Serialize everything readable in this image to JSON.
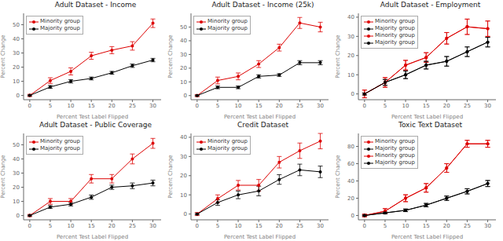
{
  "chart_data": [
    {
      "type": "line",
      "title": "Adult Dataset - Income",
      "xlabel": "Percent Test Label Flipped",
      "ylabel": "Percent Change",
      "x": [
        0,
        5,
        10,
        15,
        20,
        25,
        30
      ],
      "xlim": [
        -1.5,
        32
      ],
      "xticks": [
        0,
        5,
        10,
        15,
        20,
        25,
        30
      ],
      "ylim": [
        -3,
        58
      ],
      "yticks": [
        0,
        10,
        20,
        30,
        40,
        50
      ],
      "grid": false,
      "legend": "upper left",
      "series": [
        {
          "name": "Minority group",
          "color": "#dd0000",
          "marker": "circle",
          "values": [
            0,
            10.5,
            17,
            28,
            32,
            35,
            51
          ],
          "errors": [
            0.8,
            2,
            2.5,
            2.5,
            2.5,
            3,
            3
          ]
        },
        {
          "name": "Majority group",
          "color": "#000000",
          "marker": "circle",
          "values": [
            0,
            6,
            10,
            12,
            16,
            21,
            25
          ],
          "errors": [
            0.3,
            1,
            1.2,
            1,
            1,
            1.2,
            1.2
          ]
        }
      ]
    },
    {
      "type": "line",
      "title": "Adult Dataset - Income (25k)",
      "xlabel": "Percent Test Label Flipped",
      "ylabel": "Percent Change",
      "x": [
        0,
        5,
        10,
        15,
        20,
        25,
        30
      ],
      "xlim": [
        -1.5,
        32
      ],
      "xticks": [
        0,
        5,
        10,
        15,
        20,
        25,
        30
      ],
      "ylim": [
        -3,
        60
      ],
      "yticks": [
        0,
        10,
        20,
        30,
        40,
        50
      ],
      "grid": false,
      "legend": "upper left",
      "series": [
        {
          "name": "Minority group",
          "color": "#dd0000",
          "marker": "circle",
          "values": [
            0,
            11,
            14,
            23,
            35,
            53,
            50
          ],
          "errors": [
            0.8,
            2.5,
            2.5,
            2.5,
            2.5,
            4,
            3.5
          ]
        },
        {
          "name": "Majority group",
          "color": "#000000",
          "marker": "circle",
          "values": [
            0,
            6,
            6,
            14,
            15,
            24,
            24
          ],
          "errors": [
            0.3,
            1,
            1,
            1.2,
            1,
            1.5,
            1.5
          ]
        }
      ]
    },
    {
      "type": "line",
      "title": "Adult Dataset - Employment",
      "xlabel": "Percent Test Label Flipped",
      "ylabel": "Percent Change",
      "x": [
        0,
        5,
        10,
        15,
        20,
        25,
        30
      ],
      "xlim": [
        -1.5,
        32
      ],
      "xticks": [
        0,
        5,
        10,
        15,
        20,
        25,
        30
      ],
      "ylim": [
        -3,
        42
      ],
      "yticks": [
        0,
        10,
        20,
        30,
        40
      ],
      "grid": false,
      "legend": "upper left",
      "series": [
        {
          "name": "Minority group",
          "color": "#dd0000",
          "marker": "circle",
          "values": [
            0,
            6,
            15,
            19,
            29,
            35,
            34
          ],
          "errors": [
            2,
            2.5,
            2.5,
            2.5,
            3,
            4,
            4
          ]
        },
        {
          "name": "Majority group",
          "color": "#000000",
          "marker": "circle",
          "values": [
            0,
            6,
            10,
            15,
            17,
            22,
            27
          ],
          "errors": [
            0.5,
            1.5,
            2,
            2,
            2.5,
            2.5,
            2.5
          ]
        },
        {
          "name": "Minority group",
          "color": "#dd0000",
          "marker": "circle",
          "values": [
            0,
            6,
            15,
            19,
            29,
            35,
            34
          ],
          "errors": [
            2,
            2.5,
            2.5,
            2.5,
            3,
            4,
            4
          ]
        },
        {
          "name": "Majority group",
          "color": "#000000",
          "marker": "circle",
          "values": [
            0,
            6,
            10,
            15,
            17,
            22,
            27
          ],
          "errors": [
            0.5,
            1.5,
            2,
            2,
            2.5,
            2.5,
            2.5
          ]
        }
      ]
    },
    {
      "type": "line",
      "title": "Adult Dataset - Public Coverage",
      "xlabel": "Percent Test Label Flipped",
      "ylabel": "Percent Change",
      "x": [
        0,
        5,
        10,
        15,
        20,
        25,
        30
      ],
      "xlim": [
        -1.5,
        32
      ],
      "xticks": [
        0,
        5,
        10,
        15,
        20,
        25,
        30
      ],
      "ylim": [
        -3,
        58
      ],
      "yticks": [
        0,
        10,
        20,
        30,
        40,
        50
      ],
      "grid": false,
      "legend": "upper left",
      "series": [
        {
          "name": "Minority group",
          "color": "#dd0000",
          "marker": "circle",
          "values": [
            0,
            10,
            10,
            26,
            26,
            40,
            51
          ],
          "errors": [
            0.8,
            2,
            2,
            3,
            3,
            3.5,
            3.5
          ]
        },
        {
          "name": "Majority group",
          "color": "#000000",
          "marker": "circle",
          "values": [
            0,
            6,
            8,
            13,
            20,
            21,
            23
          ],
          "errors": [
            0.3,
            1,
            1.2,
            1.5,
            1.5,
            2,
            2
          ]
        }
      ]
    },
    {
      "type": "line",
      "title": "Credit Dataset",
      "xlabel": "Percent Test Label Flipped",
      "ylabel": "Percent Change",
      "x": [
        0,
        5,
        10,
        15,
        20,
        25,
        30
      ],
      "xlim": [
        -1.5,
        32
      ],
      "xticks": [
        0,
        5,
        10,
        15,
        20,
        25,
        30
      ],
      "ylim": [
        -3,
        42
      ],
      "yticks": [
        0,
        10,
        20,
        30,
        40
      ],
      "grid": false,
      "legend": "upper left",
      "series": [
        {
          "name": "Minority group",
          "color": "#dd0000",
          "marker": "circle",
          "values": [
            0,
            8,
            15,
            15,
            27,
            33,
            38
          ],
          "errors": [
            0.8,
            2,
            2.5,
            3,
            3,
            4,
            4
          ]
        },
        {
          "name": "Majority group",
          "color": "#000000",
          "marker": "circle",
          "values": [
            0,
            6,
            10,
            12,
            18,
            23,
            22
          ],
          "errors": [
            0.3,
            1.5,
            2,
            2.5,
            2.5,
            3,
            3
          ]
        }
      ]
    },
    {
      "type": "line",
      "title": "Toxic Text Dataset",
      "xlabel": "Percent Test Label Flipped",
      "ylabel": "Percent Change",
      "x": [
        0,
        5,
        10,
        15,
        20,
        25,
        30
      ],
      "xlim": [
        -1.5,
        32
      ],
      "xticks": [
        0,
        5,
        10,
        15,
        20,
        25,
        30
      ],
      "ylim": [
        -5,
        95
      ],
      "yticks": [
        0,
        20,
        40,
        60,
        80
      ],
      "grid": false,
      "legend": "upper left",
      "series": [
        {
          "name": "Minority group",
          "color": "#dd0000",
          "marker": "circle",
          "values": [
            0,
            5,
            20,
            32,
            55,
            83,
            83
          ],
          "errors": [
            1.5,
            3,
            4,
            5,
            5,
            4,
            4
          ]
        },
        {
          "name": "Majority group",
          "color": "#000000",
          "marker": "circle",
          "values": [
            0,
            3,
            6,
            12,
            20,
            28,
            37
          ],
          "errors": [
            0.5,
            1,
            1.5,
            2,
            2.5,
            3,
            3.5
          ]
        },
        {
          "name": "Minority group",
          "color": "#dd0000",
          "marker": "circle",
          "values": [
            0,
            5,
            20,
            32,
            55,
            83,
            83
          ],
          "errors": [
            1.5,
            3,
            4,
            5,
            5,
            4,
            4
          ]
        },
        {
          "name": "Majority group",
          "color": "#000000",
          "marker": "circle",
          "values": [
            0,
            3,
            6,
            12,
            20,
            28,
            37
          ],
          "errors": [
            0.5,
            1,
            1.5,
            2,
            2.5,
            3,
            3.5
          ]
        }
      ]
    }
  ]
}
